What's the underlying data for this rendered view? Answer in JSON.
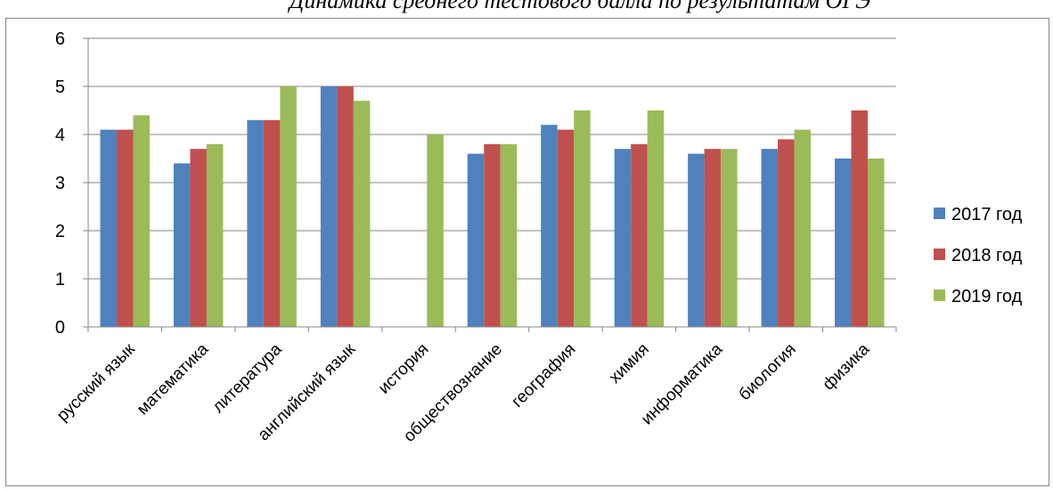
{
  "chart_data": {
    "type": "bar",
    "title": "Динамика среднего тестового балла по результатам ОГЭ",
    "categories": [
      "русский язык",
      "математика",
      "литература",
      "английский язык",
      "история",
      "обществознание",
      "география",
      "химия",
      "информатика",
      "биология",
      "физика"
    ],
    "series": [
      {
        "name": "2017 год",
        "color": "#4F81BD",
        "values": [
          4.1,
          3.4,
          4.3,
          5.0,
          null,
          3.6,
          4.2,
          3.7,
          3.6,
          3.7,
          3.5
        ]
      },
      {
        "name": "2018 год",
        "color": "#C0504D",
        "values": [
          4.1,
          3.7,
          4.3,
          5.0,
          null,
          3.8,
          4.1,
          3.8,
          3.7,
          3.9,
          4.5
        ]
      },
      {
        "name": "2019 год",
        "color": "#9BBB59",
        "values": [
          4.4,
          3.8,
          5.0,
          4.7,
          4.0,
          3.8,
          4.5,
          4.5,
          3.7,
          4.1,
          3.5
        ]
      }
    ],
    "ylim": [
      0,
      6
    ],
    "yticks": [
      0,
      1,
      2,
      3,
      4,
      5,
      6
    ],
    "grid": true,
    "legend_position": "right"
  }
}
